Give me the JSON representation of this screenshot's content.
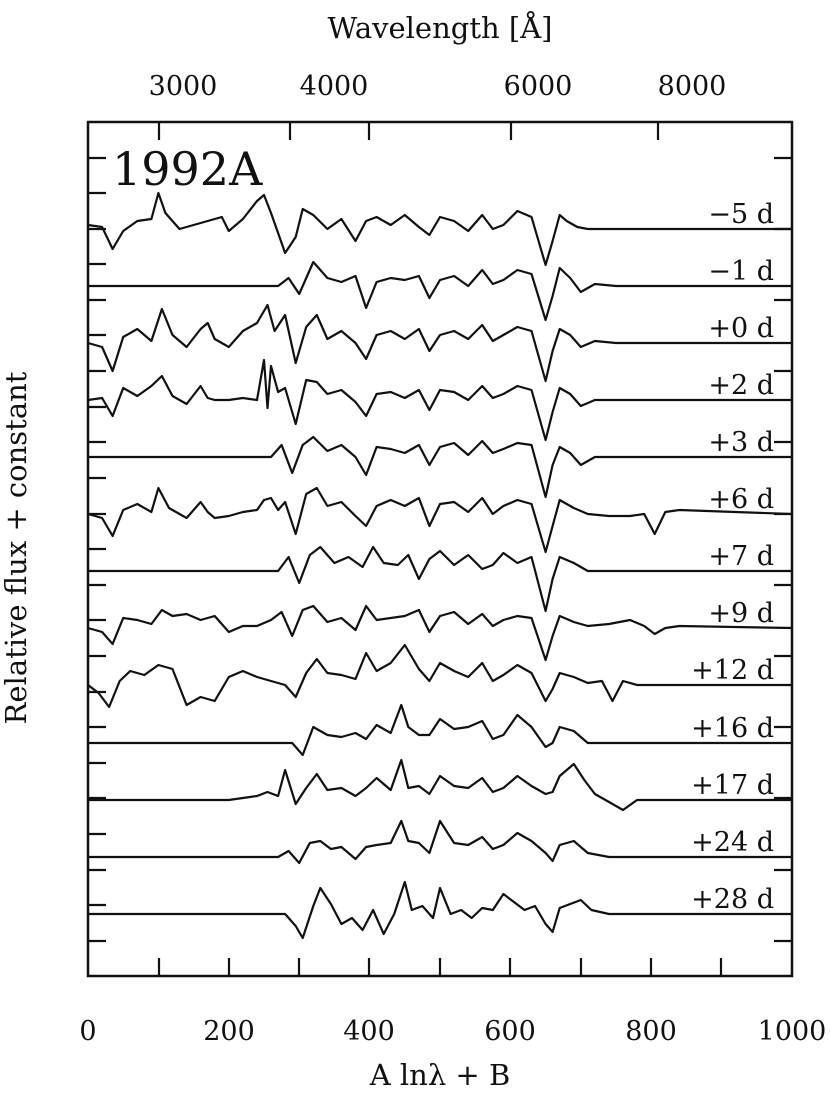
{
  "chart_data": {
    "type": "line",
    "title": "1992A",
    "xlabel": "A lnλ + B",
    "ylabel": "Relative flux + constant",
    "top_axis_label": "Wavelength [Å]",
    "xlim": [
      0,
      1000
    ],
    "x_ticks": [
      "0",
      "200",
      "400",
      "600",
      "800",
      "1000"
    ],
    "top_ticks": [
      "3000",
      "4000",
      "6000",
      "8000"
    ],
    "grid": false,
    "series": [
      {
        "name": "−5 d",
        "x": [
          0,
          20,
          35,
          50,
          70,
          90,
          100,
          110,
          130,
          150,
          170,
          190,
          200,
          220,
          240,
          250,
          260,
          270,
          280,
          295,
          305,
          320,
          340,
          360,
          380,
          395,
          410,
          430,
          450,
          470,
          485,
          500,
          520,
          540,
          560,
          575,
          590,
          610,
          630,
          650,
          660,
          670,
          680,
          695,
          710,
          730,
          750
        ],
        "y": [
          0.1,
          0.05,
          -0.5,
          -0.05,
          0.2,
          0.25,
          0.9,
          0.4,
          0.0,
          0.1,
          0.2,
          0.3,
          -0.05,
          0.25,
          0.7,
          0.85,
          0.4,
          -0.1,
          -0.6,
          -0.2,
          0.5,
          0.35,
          0.0,
          0.25,
          -0.3,
          0.2,
          0.3,
          0.1,
          0.35,
          0.05,
          -0.15,
          0.3,
          0.2,
          -0.05,
          0.35,
          0.0,
          0.1,
          0.45,
          0.3,
          -0.9,
          -0.3,
          0.35,
          0.2,
          0.05,
          0.0,
          0.0,
          0.0
        ]
      },
      {
        "name": "−1 d",
        "x": [
          0,
          270,
          285,
          300,
          320,
          340,
          360,
          380,
          395,
          410,
          430,
          450,
          470,
          485,
          500,
          520,
          540,
          560,
          575,
          590,
          610,
          630,
          650,
          660,
          670,
          685,
          700,
          720,
          750
        ],
        "y": [
          0.0,
          0.0,
          0.2,
          -0.2,
          0.6,
          0.2,
          0.1,
          0.25,
          -0.55,
          0.1,
          0.2,
          0.15,
          0.25,
          -0.3,
          0.15,
          0.25,
          0.0,
          0.4,
          0.05,
          0.15,
          0.4,
          0.3,
          -0.85,
          -0.25,
          0.45,
          0.2,
          -0.15,
          0.05,
          0.0
        ]
      },
      {
        "name": "+0 d",
        "x": [
          0,
          20,
          35,
          50,
          70,
          90,
          105,
          120,
          140,
          160,
          170,
          180,
          200,
          220,
          240,
          255,
          265,
          280,
          295,
          310,
          325,
          340,
          360,
          380,
          395,
          410,
          430,
          450,
          470,
          485,
          500,
          520,
          540,
          560,
          575,
          590,
          610,
          630,
          650,
          660,
          670,
          685,
          700,
          720,
          750
        ],
        "y": [
          0.0,
          -0.1,
          -0.7,
          0.15,
          0.35,
          0.05,
          0.85,
          0.2,
          -0.1,
          0.35,
          0.5,
          0.1,
          -0.1,
          0.3,
          0.5,
          0.95,
          0.3,
          0.7,
          -0.5,
          0.4,
          0.7,
          0.1,
          0.3,
          0.0,
          -0.4,
          0.2,
          0.3,
          0.1,
          0.35,
          -0.2,
          0.2,
          0.3,
          0.1,
          0.45,
          0.05,
          0.2,
          0.4,
          0.3,
          -0.95,
          -0.2,
          0.35,
          0.2,
          -0.1,
          0.05,
          0.0
        ]
      },
      {
        "name": "+2 d",
        "x": [
          0,
          20,
          35,
          50,
          70,
          90,
          105,
          120,
          140,
          160,
          170,
          180,
          200,
          220,
          240,
          250,
          255,
          260,
          270,
          280,
          295,
          310,
          325,
          340,
          360,
          380,
          395,
          410,
          430,
          450,
          470,
          485,
          500,
          520,
          540,
          560,
          575,
          590,
          610,
          630,
          650,
          660,
          670,
          685,
          700,
          720,
          740
        ],
        "y": [
          0.0,
          0.05,
          -0.4,
          0.3,
          0.1,
          0.35,
          0.6,
          0.1,
          -0.1,
          0.35,
          0.05,
          0.0,
          0.0,
          0.05,
          0.0,
          1.0,
          -0.2,
          0.85,
          0.2,
          0.3,
          -0.6,
          0.5,
          0.45,
          0.15,
          0.25,
          -0.05,
          -0.4,
          0.15,
          0.2,
          0.05,
          0.25,
          -0.25,
          0.25,
          0.2,
          0.0,
          0.35,
          0.05,
          0.15,
          0.35,
          0.25,
          -1.0,
          -0.3,
          0.3,
          0.15,
          -0.15,
          0.0,
          0.0
        ]
      },
      {
        "name": "+3 d",
        "x": [
          0,
          260,
          275,
          290,
          305,
          320,
          340,
          360,
          380,
          395,
          410,
          430,
          450,
          470,
          485,
          500,
          520,
          540,
          560,
          575,
          590,
          610,
          630,
          650,
          660,
          670,
          685,
          700,
          720,
          750
        ],
        "y": [
          0.0,
          0.0,
          0.3,
          -0.4,
          0.3,
          0.5,
          0.15,
          0.3,
          0.0,
          -0.45,
          0.25,
          0.2,
          0.1,
          0.3,
          -0.2,
          0.25,
          0.35,
          0.05,
          0.4,
          0.1,
          0.2,
          0.35,
          0.3,
          -1.0,
          -0.2,
          0.25,
          0.1,
          -0.2,
          0.0,
          0.0
        ]
      },
      {
        "name": "+6 d",
        "x": [
          0,
          20,
          35,
          50,
          70,
          90,
          100,
          115,
          140,
          160,
          170,
          180,
          200,
          220,
          240,
          250,
          260,
          270,
          280,
          295,
          310,
          325,
          340,
          360,
          380,
          395,
          410,
          430,
          450,
          470,
          485,
          500,
          520,
          540,
          560,
          575,
          590,
          610,
          630,
          650,
          660,
          670,
          690,
          710,
          740,
          770,
          790,
          805,
          820,
          840
        ],
        "y": [
          0.0,
          -0.1,
          -0.55,
          0.1,
          0.25,
          0.05,
          0.65,
          0.15,
          -0.1,
          0.3,
          0.05,
          -0.1,
          -0.05,
          0.05,
          0.1,
          0.35,
          0.4,
          0.1,
          0.3,
          -0.5,
          0.5,
          0.65,
          0.2,
          0.3,
          -0.05,
          -0.3,
          0.2,
          0.35,
          0.2,
          0.4,
          -0.3,
          0.25,
          0.3,
          0.05,
          0.4,
          0.0,
          0.2,
          0.35,
          0.25,
          -0.95,
          -0.3,
          0.35,
          0.15,
          0.0,
          -0.05,
          -0.05,
          0.0,
          -0.5,
          0.05,
          0.1
        ]
      },
      {
        "name": "+7 d",
        "x": [
          0,
          270,
          285,
          300,
          315,
          330,
          350,
          370,
          390,
          405,
          420,
          440,
          455,
          470,
          485,
          500,
          520,
          540,
          560,
          575,
          590,
          610,
          630,
          650,
          660,
          670,
          690,
          710,
          730,
          750
        ],
        "y": [
          0.0,
          0.0,
          0.35,
          -0.3,
          0.4,
          0.6,
          0.2,
          0.35,
          0.1,
          0.6,
          0.2,
          0.15,
          0.4,
          -0.2,
          0.3,
          0.5,
          0.15,
          0.4,
          0.05,
          0.15,
          0.45,
          0.2,
          0.35,
          -1.0,
          -0.2,
          0.35,
          0.2,
          0.0,
          0.0,
          0.0
        ]
      },
      {
        "name": "+9 d",
        "x": [
          0,
          20,
          35,
          50,
          70,
          90,
          105,
          120,
          140,
          160,
          180,
          200,
          220,
          240,
          260,
          275,
          290,
          305,
          320,
          340,
          360,
          380,
          395,
          410,
          430,
          450,
          470,
          485,
          500,
          520,
          540,
          560,
          575,
          590,
          610,
          630,
          650,
          660,
          670,
          690,
          710,
          740,
          770,
          790,
          805,
          820,
          840
        ],
        "y": [
          0.0,
          -0.1,
          -0.4,
          0.25,
          0.2,
          0.1,
          0.45,
          0.3,
          0.35,
          0.2,
          0.3,
          -0.1,
          0.05,
          0.05,
          0.2,
          0.4,
          -0.2,
          0.45,
          0.55,
          0.15,
          0.25,
          -0.05,
          0.55,
          0.2,
          0.25,
          0.3,
          0.45,
          -0.1,
          0.3,
          0.4,
          0.1,
          0.35,
          0.05,
          0.2,
          0.3,
          0.25,
          -0.8,
          -0.2,
          0.3,
          0.15,
          0.05,
          0.1,
          0.2,
          0.05,
          -0.15,
          0.0,
          0.05
        ]
      },
      {
        "name": "+12 d",
        "x": [
          0,
          15,
          30,
          45,
          60,
          80,
          100,
          120,
          140,
          160,
          180,
          200,
          220,
          240,
          260,
          280,
          295,
          310,
          325,
          340,
          360,
          380,
          395,
          410,
          430,
          450,
          470,
          485,
          500,
          520,
          540,
          560,
          575,
          590,
          610,
          630,
          650,
          660,
          670,
          690,
          710,
          730,
          745,
          760,
          780
        ],
        "y": [
          0.0,
          -0.2,
          -0.55,
          0.1,
          0.35,
          0.25,
          0.5,
          0.4,
          -0.5,
          -0.3,
          -0.4,
          0.2,
          0.35,
          0.2,
          0.1,
          0.0,
          -0.3,
          0.3,
          0.65,
          0.3,
          0.25,
          0.15,
          0.8,
          0.35,
          0.55,
          1.0,
          0.4,
          0.1,
          0.55,
          0.35,
          0.2,
          0.55,
          0.1,
          0.25,
          0.5,
          0.3,
          -0.4,
          -0.1,
          0.3,
          0.2,
          0.05,
          0.1,
          -0.4,
          0.1,
          0.0
        ]
      },
      {
        "name": "+16 d",
        "x": [
          0,
          290,
          305,
          320,
          340,
          360,
          380,
          395,
          410,
          430,
          445,
          455,
          470,
          485,
          500,
          520,
          540,
          560,
          575,
          590,
          610,
          630,
          650,
          660,
          670,
          690,
          710,
          740
        ],
        "y": [
          0.0,
          0.0,
          -0.3,
          0.4,
          0.2,
          0.15,
          0.25,
          0.1,
          0.45,
          0.25,
          0.95,
          0.4,
          0.2,
          0.2,
          0.6,
          0.35,
          0.4,
          0.55,
          0.1,
          0.2,
          0.7,
          0.4,
          -0.1,
          0.0,
          0.4,
          0.3,
          0.0,
          0.0
        ]
      },
      {
        "name": "+17 d",
        "x": [
          0,
          200,
          220,
          240,
          255,
          270,
          280,
          295,
          310,
          325,
          340,
          360,
          380,
          395,
          410,
          430,
          445,
          455,
          470,
          485,
          500,
          520,
          540,
          560,
          575,
          590,
          610,
          630,
          650,
          660,
          670,
          690,
          705,
          720,
          740,
          760,
          780,
          800
        ],
        "y": [
          0.0,
          0.0,
          0.05,
          0.1,
          0.2,
          0.1,
          0.75,
          -0.1,
          0.3,
          0.65,
          0.25,
          0.3,
          0.1,
          0.3,
          0.55,
          0.25,
          1.0,
          0.3,
          0.35,
          0.15,
          0.6,
          0.35,
          0.3,
          0.55,
          0.2,
          0.3,
          0.6,
          0.35,
          0.15,
          0.2,
          0.6,
          0.9,
          0.5,
          0.15,
          -0.05,
          -0.25,
          0.0,
          0.0
        ]
      },
      {
        "name": "+24 d",
        "x": [
          0,
          270,
          285,
          300,
          315,
          330,
          345,
          360,
          380,
          395,
          410,
          430,
          445,
          455,
          470,
          485,
          500,
          520,
          540,
          560,
          575,
          590,
          610,
          630,
          650,
          660,
          670,
          690,
          710,
          740
        ],
        "y": [
          0.0,
          0.0,
          0.15,
          -0.15,
          0.35,
          0.4,
          0.2,
          0.25,
          -0.05,
          0.25,
          0.3,
          0.35,
          0.9,
          0.4,
          0.35,
          0.1,
          0.9,
          0.35,
          0.3,
          0.5,
          0.2,
          0.3,
          0.6,
          0.4,
          0.1,
          -0.1,
          0.3,
          0.4,
          0.1,
          0.0
        ]
      },
      {
        "name": "+28 d",
        "x": [
          0,
          280,
          295,
          305,
          320,
          330,
          345,
          360,
          375,
          390,
          405,
          420,
          435,
          450,
          460,
          475,
          490,
          500,
          515,
          530,
          545,
          560,
          575,
          590,
          605,
          620,
          635,
          650,
          660,
          670,
          685,
          700,
          715,
          740
        ],
        "y": [
          0.0,
          0.0,
          -0.3,
          -0.6,
          0.2,
          0.65,
          0.25,
          -0.25,
          -0.1,
          -0.4,
          0.1,
          -0.5,
          0.0,
          0.8,
          0.1,
          0.2,
          -0.1,
          0.65,
          0.0,
          0.1,
          -0.1,
          0.15,
          0.1,
          0.5,
          0.3,
          0.1,
          0.2,
          -0.25,
          -0.45,
          0.15,
          0.25,
          0.35,
          0.1,
          0.0
        ]
      }
    ]
  }
}
